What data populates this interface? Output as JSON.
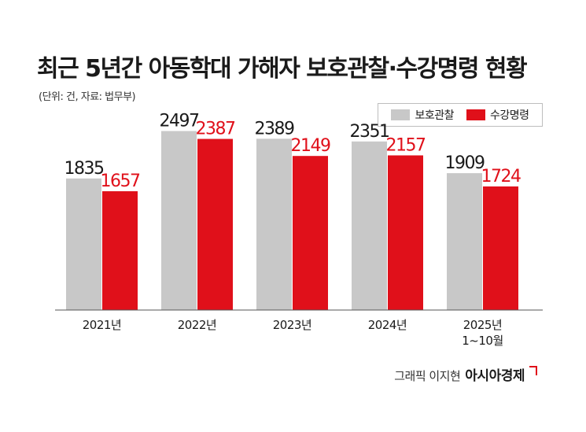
{
  "header": {
    "title": "최근 5년간 아동학대 가해자 보호관찰·수강명령 현황",
    "unit": "(단위: 건, 자료: 법무부)"
  },
  "colors": {
    "series_0": "#c8c8c8",
    "series_1": "#e0101a",
    "label_series_0": "#1a1a1a",
    "label_series_1": "#e0101a"
  },
  "chart_data": {
    "type": "bar",
    "categories": [
      "2021년",
      "2022년",
      "2023년",
      "2024년",
      "2025년\n1~10월"
    ],
    "series": [
      {
        "name": "보호관찰",
        "values": [
          1835,
          2497,
          2389,
          2351,
          1909
        ]
      },
      {
        "name": "수강명령",
        "values": [
          1657,
          2387,
          2149,
          2157,
          1724
        ]
      }
    ],
    "ylim": [
      0,
      2700
    ],
    "legend": "top-right",
    "grid": false
  },
  "footer": {
    "credit": "그래픽 이지현",
    "brand": "아시아경제"
  }
}
